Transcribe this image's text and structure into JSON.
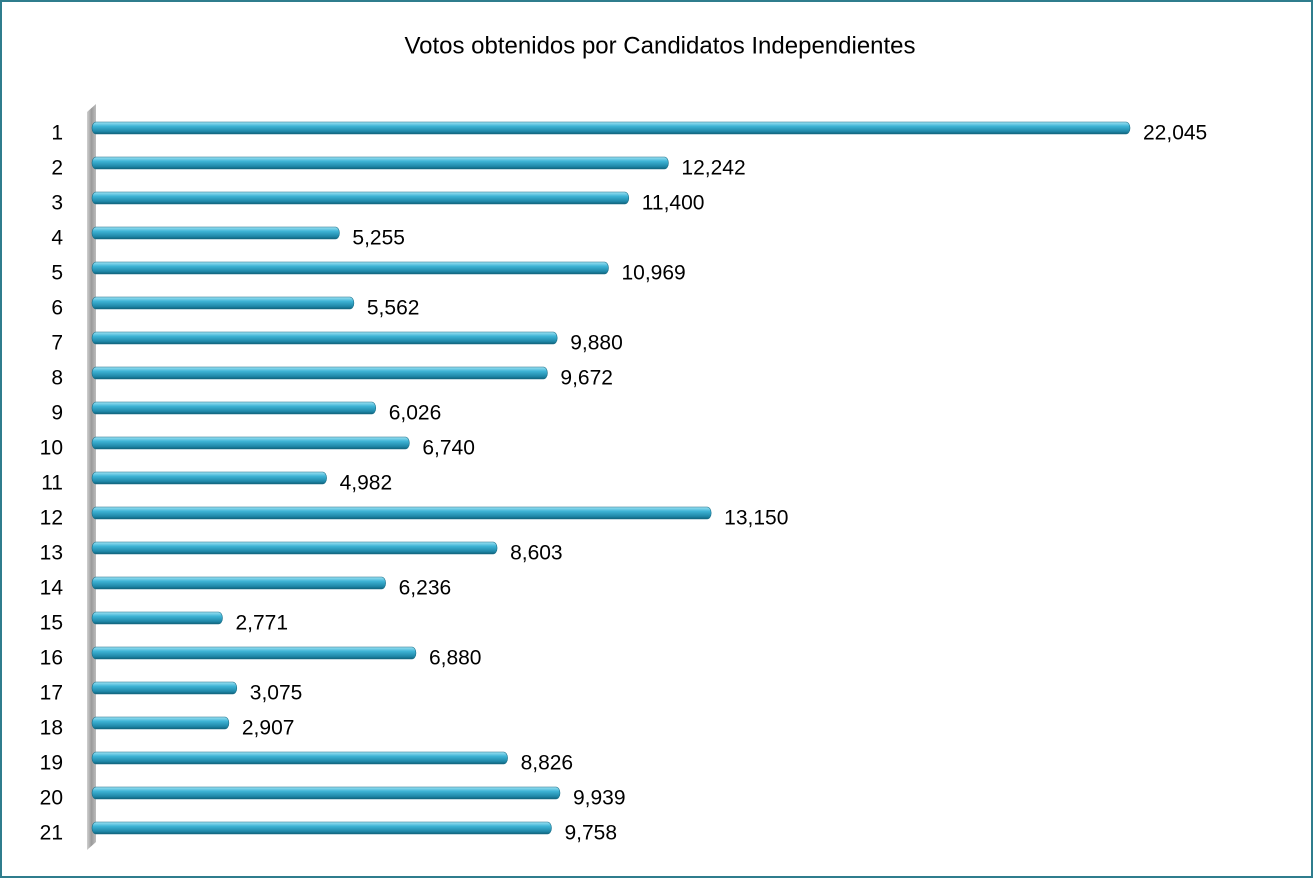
{
  "chart_data": {
    "type": "bar",
    "orientation": "horizontal",
    "title": "Votos obtenidos por Candidatos Independientes",
    "categories": [
      "1",
      "2",
      "3",
      "4",
      "5",
      "6",
      "7",
      "8",
      "9",
      "10",
      "11",
      "12",
      "13",
      "14",
      "15",
      "16",
      "17",
      "18",
      "19",
      "20",
      "21"
    ],
    "values": [
      22045,
      12242,
      11400,
      5255,
      10969,
      5562,
      9880,
      9672,
      6026,
      6740,
      4982,
      13150,
      8603,
      6236,
      2771,
      6880,
      3075,
      2907,
      8826,
      9939,
      9758
    ],
    "value_labels": [
      "22,045",
      "12,242",
      "11,400",
      "5,255",
      "10,969",
      "5,562",
      "9,880",
      "9,672",
      "6,026",
      "6,740",
      "4,982",
      "13,150",
      "8,603",
      "6,236",
      "2,771",
      "6,880",
      "3,075",
      "2,907",
      "8,826",
      "9,939",
      "9,758"
    ],
    "color": "#3fb4d6"
  }
}
